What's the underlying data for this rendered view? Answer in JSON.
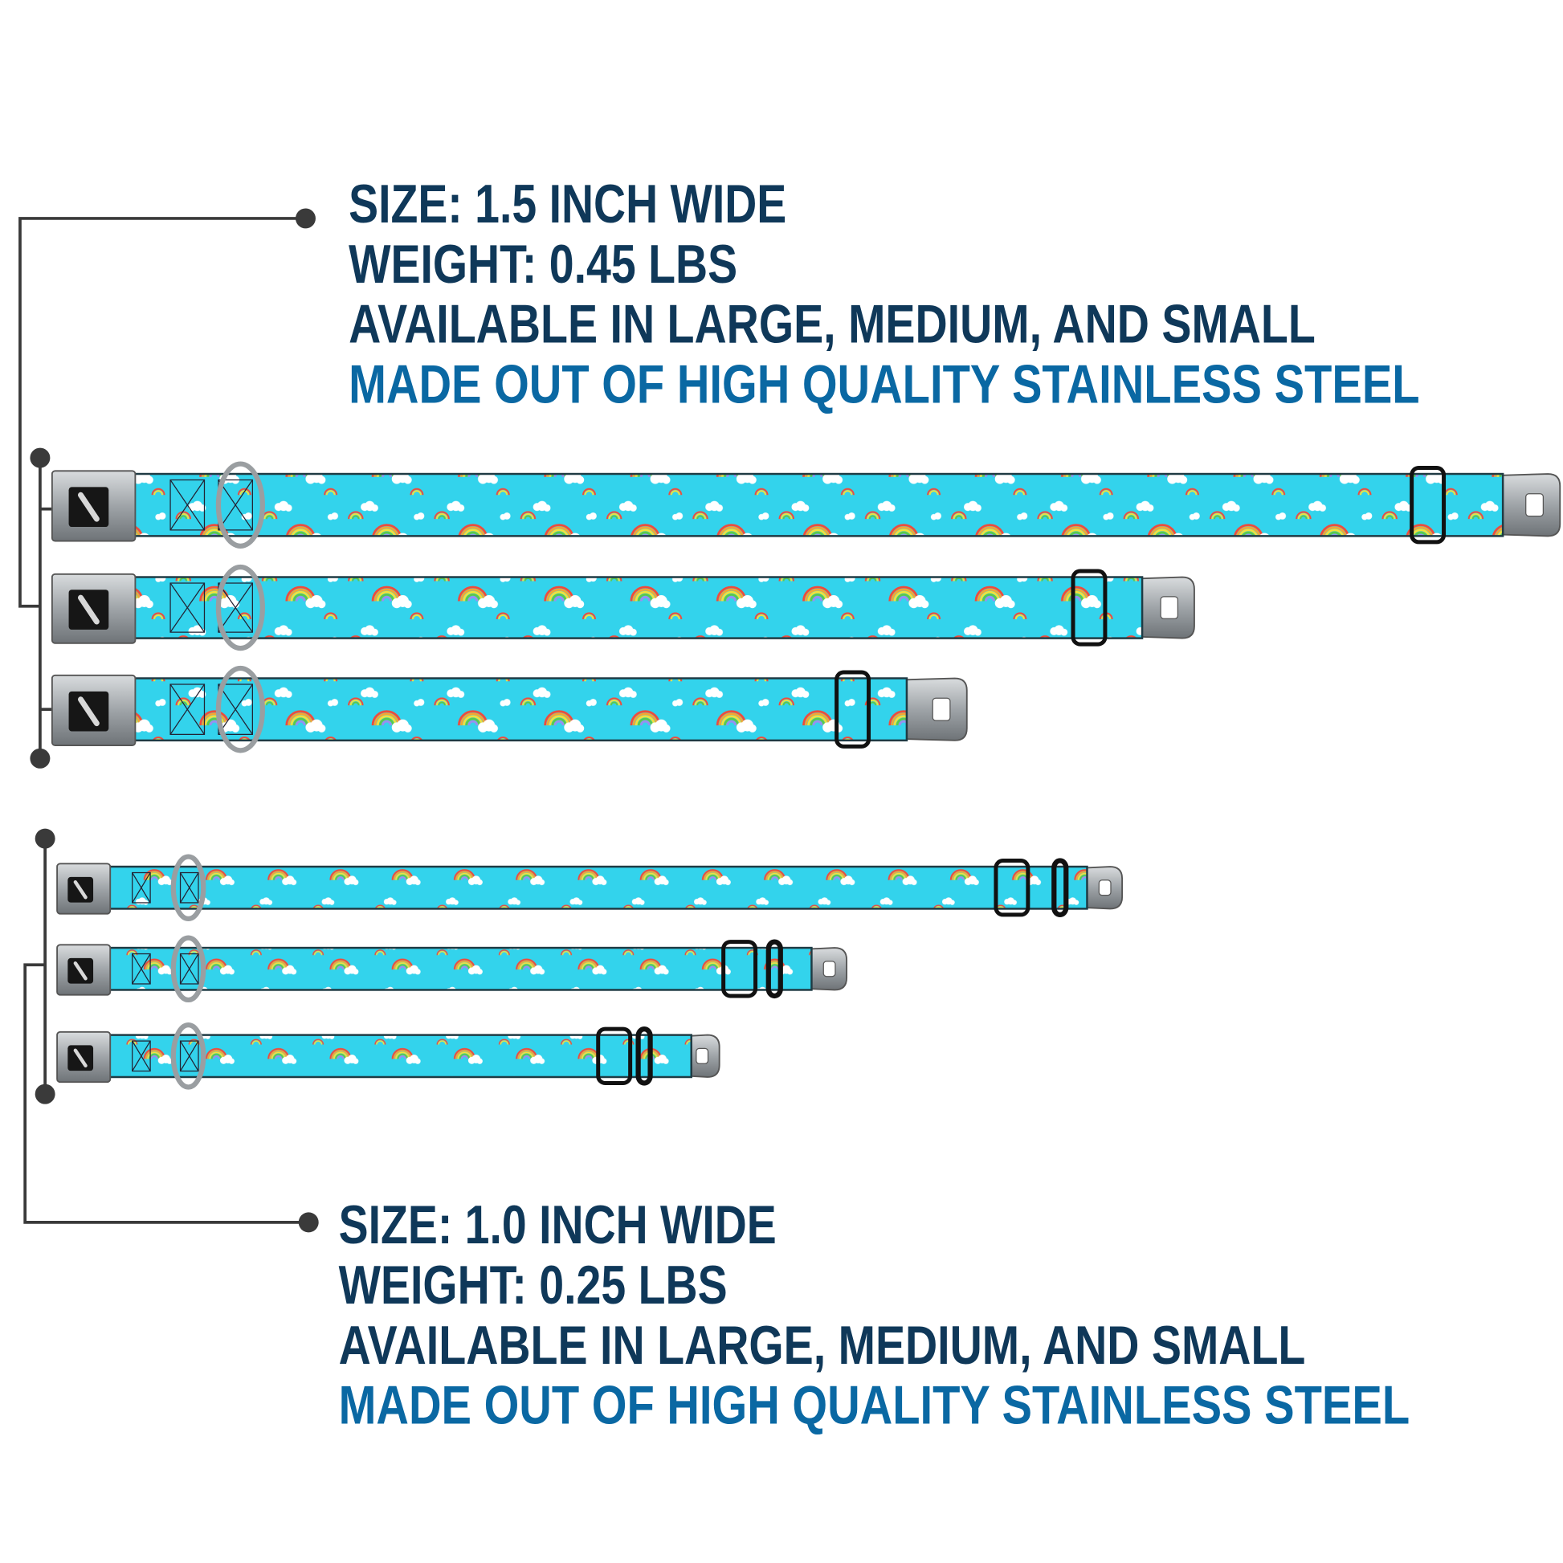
{
  "colors": {
    "text_dark": "#0f3859",
    "text_accent": "#0a68a3",
    "strap": "#33d3ec",
    "bracket": "#3a3a3a",
    "metal": "#a9adb0"
  },
  "wide_collars": {
    "size": "SIZE: 1.5 INCH WIDE",
    "weight": "WEIGHT: 0.45 LBS",
    "availability": "AVAILABLE IN LARGE, MEDIUM, AND SMALL",
    "material": "MADE OUT OF HIGH QUALITY STAINLESS STEEL",
    "collars": [
      "large",
      "medium",
      "small"
    ]
  },
  "narrow_collars": {
    "size": "SIZE: 1.0 INCH WIDE",
    "weight": "WEIGHT: 0.25 LBS",
    "availability": "AVAILABLE IN LARGE, MEDIUM, AND SMALL",
    "material": "MADE OUT OF HIGH QUALITY STAINLESS STEEL",
    "collars": [
      "large",
      "medium",
      "small"
    ]
  },
  "icons": {
    "buckle_logo": "dog-bone-icon",
    "pattern": "rainbow-cloud-pattern"
  }
}
